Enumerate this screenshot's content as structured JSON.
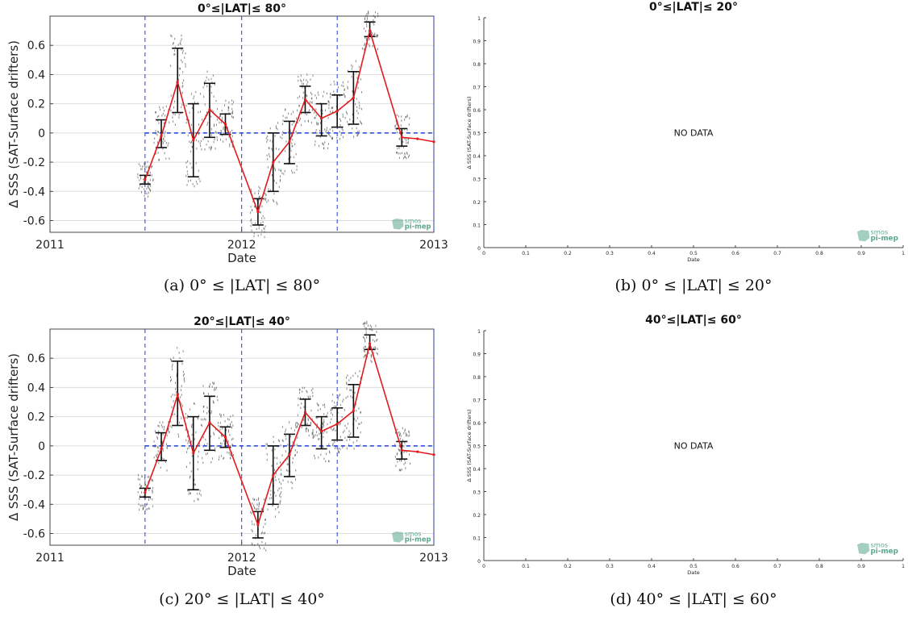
{
  "panels": [
    {
      "id": "a",
      "caption": "(a) 0° ≤ |LAT| ≤ 80°",
      "chart_data": {
        "type": "line",
        "title": "0°≤|LAT|≤ 80°",
        "xlabel": "Date",
        "ylabel": "Δ SSS (SAT-Surface drifters)",
        "xlim": [
          "2011-01-01",
          "2013-01-01"
        ],
        "ylim": [
          -0.68,
          0.8
        ],
        "x_ticks": [
          "2011",
          "2012",
          "2013"
        ],
        "y_ticks": [
          -0.6,
          -0.4,
          -0.2,
          0,
          0.2,
          0.4,
          0.6
        ],
        "grid": true,
        "vlines": [
          "2011-07-01",
          "2012-01-01",
          "2012-07-01",
          "2013-01-01"
        ],
        "hline": 0,
        "logo": "smos pi-mep",
        "series": [
          {
            "x": [
              "2011-07-01",
              "2011-08-01",
              "2011-09-01",
              "2011-10-01",
              "2011-11-01",
              "2011-12-01",
              "2012-02-01",
              "2012-03-01",
              "2012-04-01",
              "2012-05-01",
              "2012-06-01",
              "2012-07-01",
              "2012-08-01",
              "2012-09-01",
              "2012-11-01",
              "2012-12-01",
              "2013-01-01"
            ],
            "y": [
              -0.32,
              -0.02,
              0.35,
              -0.05,
              0.16,
              0.06,
              -0.54,
              -0.2,
              -0.06,
              0.23,
              0.1,
              0.15,
              0.24,
              0.7,
              -0.03,
              -0.04,
              -0.06
            ],
            "err_low": [
              -0.35,
              -0.1,
              0.14,
              -0.3,
              -0.03,
              -0.01,
              -0.63,
              -0.4,
              -0.21,
              0.14,
              -0.02,
              0.04,
              0.06,
              0.66,
              -0.09,
              null,
              null
            ],
            "err_high": [
              -0.29,
              0.09,
              0.58,
              0.2,
              0.34,
              0.13,
              -0.45,
              0.0,
              0.08,
              0.32,
              0.2,
              0.26,
              0.42,
              0.76,
              0.03,
              null,
              null
            ]
          }
        ]
      }
    },
    {
      "id": "b",
      "caption": "(b) 0° ≤ |LAT| ≤ 20°",
      "chart_data": {
        "type": "line",
        "title": "0°≤|LAT|≤ 20°",
        "xlabel": "Date",
        "ylabel": "Δ SSS (SAT-Surface drifters)",
        "xlim": [
          0,
          1
        ],
        "ylim": [
          0,
          1
        ],
        "x_ticks": [
          0,
          0.1,
          0.2,
          0.3,
          0.4,
          0.5,
          0.6,
          0.7,
          0.8,
          0.9,
          1
        ],
        "y_ticks": [
          0,
          0.1,
          0.2,
          0.3,
          0.4,
          0.5,
          0.6,
          0.7,
          0.8,
          0.9,
          1
        ],
        "grid": false,
        "annotation": "NO DATA",
        "logo": "smos pi-mep",
        "series": []
      }
    },
    {
      "id": "c",
      "caption": "(c) 20° ≤ |LAT| ≤ 40°",
      "chart_data": {
        "type": "line",
        "title": "20°≤|LAT|≤ 40°",
        "xlabel": "Date",
        "ylabel": "Δ SSS (SAT-Surface drifters)",
        "xlim": [
          "2011-01-01",
          "2013-01-01"
        ],
        "ylim": [
          -0.68,
          0.8
        ],
        "x_ticks": [
          "2011",
          "2012",
          "2013"
        ],
        "y_ticks": [
          -0.6,
          -0.4,
          -0.2,
          0,
          0.2,
          0.4,
          0.6
        ],
        "grid": true,
        "vlines": [
          "2011-07-01",
          "2012-01-01",
          "2012-07-01",
          "2013-01-01"
        ],
        "hline": 0,
        "logo": "smos pi-mep",
        "series": [
          {
            "x": [
              "2011-07-01",
              "2011-08-01",
              "2011-09-01",
              "2011-10-01",
              "2011-11-01",
              "2011-12-01",
              "2012-02-01",
              "2012-03-01",
              "2012-04-01",
              "2012-05-01",
              "2012-06-01",
              "2012-07-01",
              "2012-08-01",
              "2012-09-01",
              "2012-11-01",
              "2012-12-01",
              "2013-01-01"
            ],
            "y": [
              -0.32,
              -0.02,
              0.35,
              -0.05,
              0.16,
              0.06,
              -0.54,
              -0.2,
              -0.06,
              0.23,
              0.1,
              0.15,
              0.24,
              0.7,
              -0.03,
              -0.04,
              -0.06
            ],
            "err_low": [
              -0.35,
              -0.1,
              0.14,
              -0.3,
              -0.03,
              -0.01,
              -0.63,
              -0.4,
              -0.21,
              0.14,
              -0.02,
              0.04,
              0.06,
              0.66,
              -0.09,
              null,
              null
            ],
            "err_high": [
              -0.29,
              0.09,
              0.58,
              0.2,
              0.34,
              0.13,
              -0.45,
              0.0,
              0.08,
              0.32,
              0.2,
              0.26,
              0.42,
              0.76,
              0.03,
              null,
              null
            ]
          }
        ]
      }
    },
    {
      "id": "d",
      "caption": "(d) 40° ≤ |LAT| ≤ 60°",
      "chart_data": {
        "type": "line",
        "title": "40°≤|LAT|≤ 60°",
        "xlabel": "Date",
        "ylabel": "Δ SSS (SAT-Surface drifters)",
        "xlim": [
          0,
          1
        ],
        "ylim": [
          0,
          1
        ],
        "x_ticks": [
          0,
          0.1,
          0.2,
          0.3,
          0.4,
          0.5,
          0.6,
          0.7,
          0.8,
          0.9,
          1
        ],
        "y_ticks": [
          0,
          0.1,
          0.2,
          0.3,
          0.4,
          0.5,
          0.6,
          0.7,
          0.8,
          0.9,
          1
        ],
        "grid": false,
        "annotation": "NO DATA",
        "logo": "smos pi-mep",
        "series": []
      }
    }
  ],
  "colors": {
    "line": "#e41a1c",
    "errorbar": "#111111",
    "vline": "#1f3fd6",
    "hline": "#1f3fd6",
    "scatter": "#555555",
    "grid": "#dddddd",
    "logo": "#5aa88a"
  }
}
